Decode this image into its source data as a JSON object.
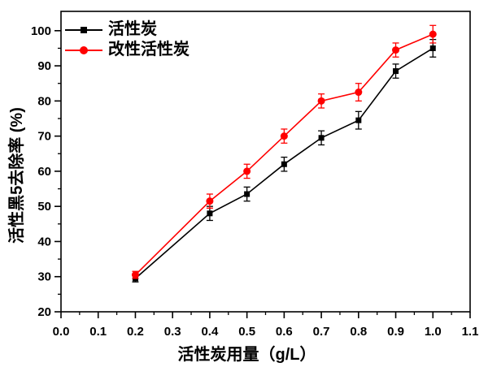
{
  "chart_data": {
    "type": "line",
    "title": "",
    "xlabel": "活性炭用量（g/L）",
    "ylabel": "活性黑5去除率 (%)",
    "xlim": [
      0,
      1.1
    ],
    "ylim": [
      20,
      105.5
    ],
    "x_major_step": 0.1,
    "x_minor_step": 0.05,
    "x_tick_labels": [
      "0.0",
      "0.1",
      "0.2",
      "0.3",
      "0.4",
      "0.5",
      "0.6",
      "0.7",
      "0.8",
      "0.9",
      "1.0",
      "1.1"
    ],
    "y_major_step": 10,
    "y_minor_step": 5,
    "y_tick_labels": [
      "20",
      "30",
      "40",
      "50",
      "60",
      "70",
      "80",
      "90",
      "100"
    ],
    "grid": false,
    "legend_position": "top-left-inside",
    "x": [
      0.2,
      0.4,
      0.5,
      0.6,
      0.7,
      0.8,
      0.9,
      1.0
    ],
    "series": [
      {
        "name": "活性炭",
        "color": "#000000",
        "marker": "square",
        "values": [
          29.5,
          48,
          53.5,
          62,
          69.5,
          74.5,
          88.5,
          95
        ],
        "errors": [
          1,
          2,
          2,
          2,
          2,
          2.5,
          2,
          2.5
        ]
      },
      {
        "name": "改性活性炭",
        "color": "#ff0000",
        "marker": "circle",
        "values": [
          30.5,
          51.5,
          60,
          70,
          80,
          82.5,
          94.5,
          99
        ],
        "errors": [
          1,
          2,
          2,
          2,
          2,
          2.5,
          2,
          2.5
        ]
      }
    ]
  }
}
